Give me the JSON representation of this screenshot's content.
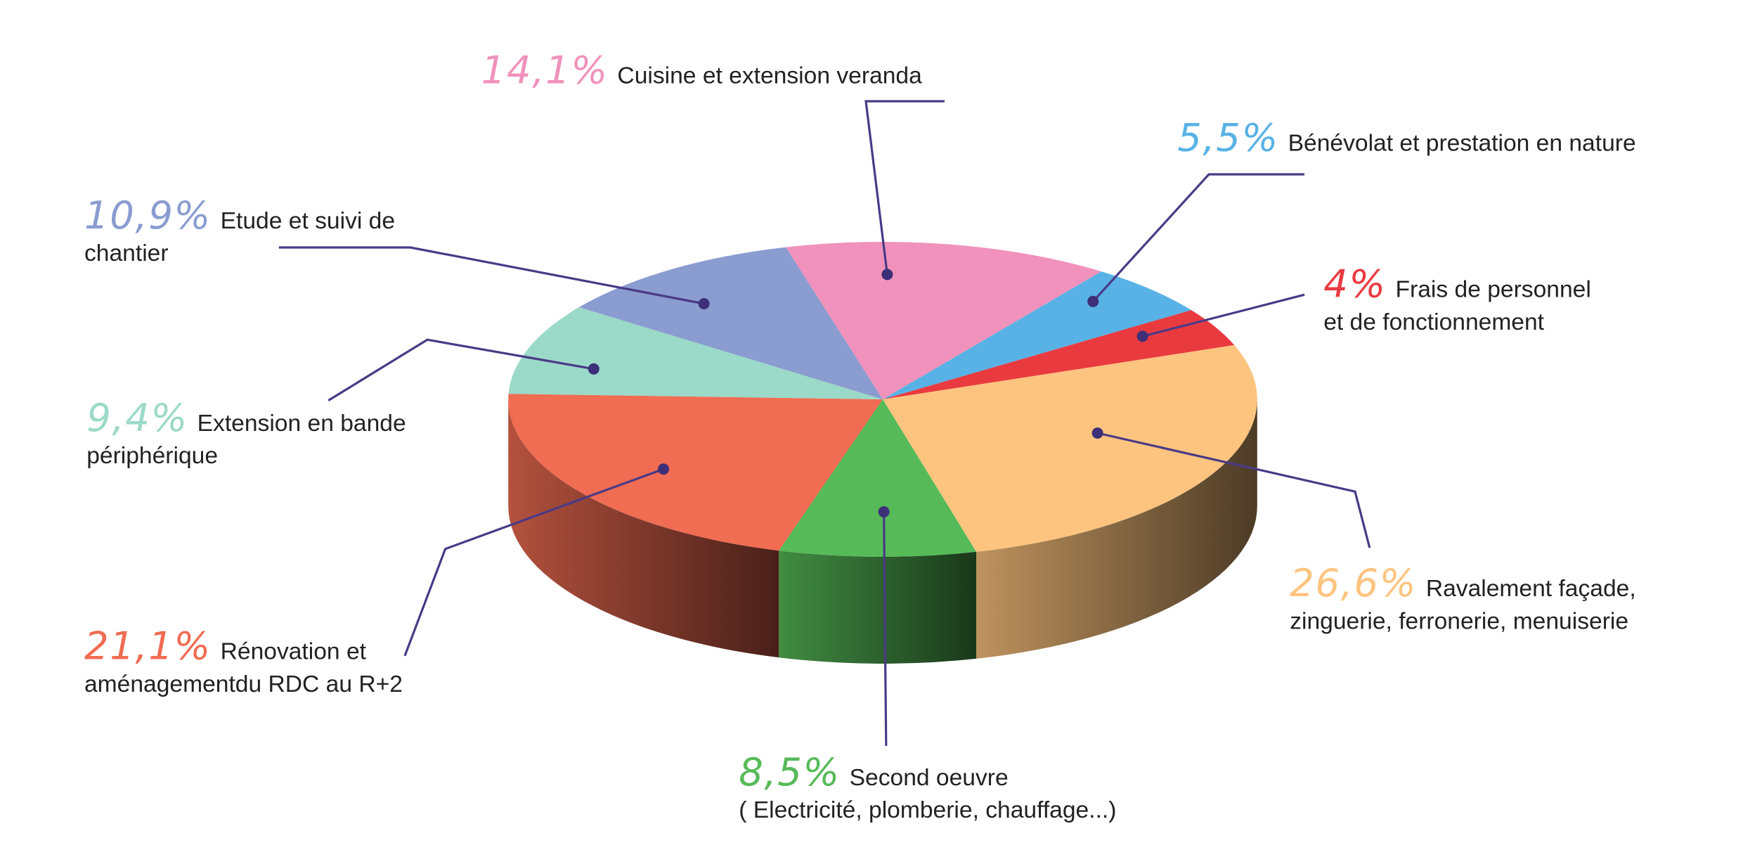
{
  "chart_data": {
    "type": "pie",
    "categories": [
      "Cuisine et extension veranda",
      "Bénévolat et prestation en nature",
      "Frais de personnel\net de fonctionnement",
      "Ravalement façade,\nzinguerie, ferronerie, menuiserie",
      "Second oeuvre\n( Electricité, plomberie, chauffage...)",
      "Rénovation et\naménagementdu RDC au R+2",
      "Extension en bande\npériphérique",
      "Etude et suivi de\nchantier"
    ],
    "values": [
      14.1,
      5.5,
      4,
      26.6,
      8.5,
      21.1,
      9.4,
      10.9
    ],
    "value_labels": [
      "14,1%",
      "5,5%",
      "4%",
      "26,6%",
      "8,5%",
      "21,1%",
      "9,4%",
      "10,9%"
    ],
    "colors": [
      "#f092bb",
      "#58b2e6",
      "#e93a40",
      "#fdc47f",
      "#56ba58",
      "#f06c52",
      "#9bd9c8",
      "#8a9cd0"
    ]
  }
}
